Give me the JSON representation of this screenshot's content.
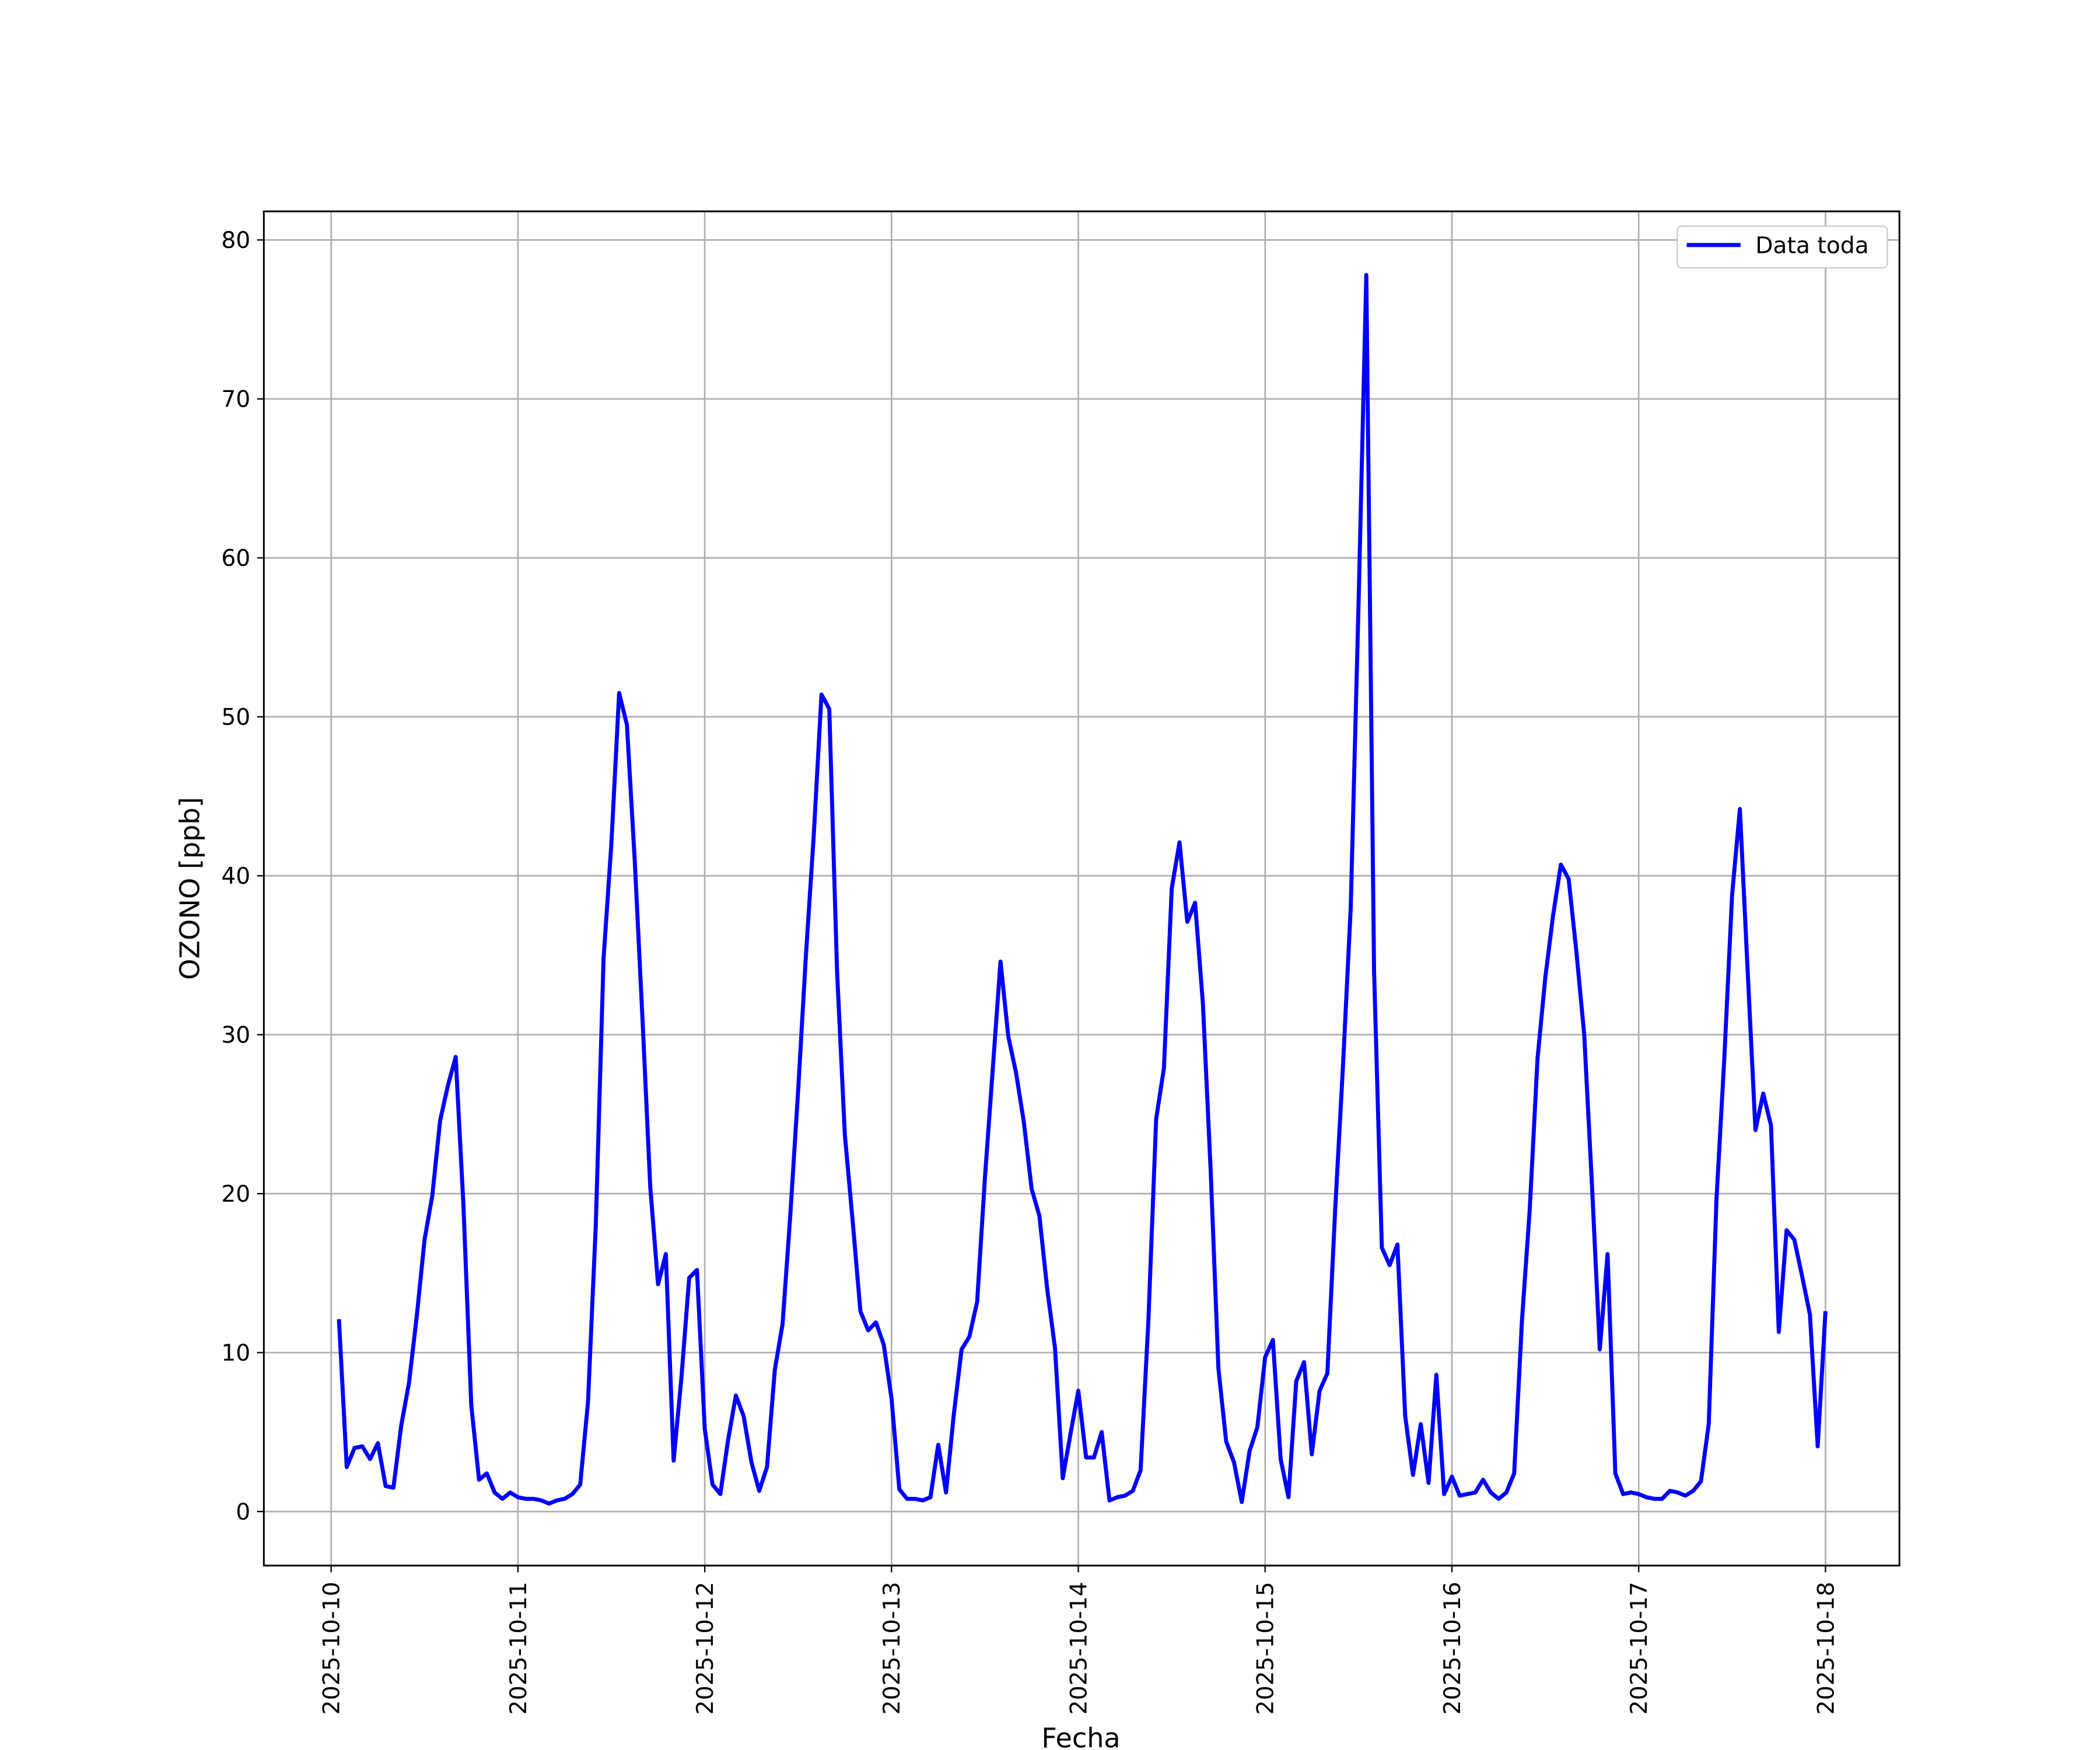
{
  "chart_data": {
    "type": "line",
    "xlabel": "Fecha",
    "ylabel": "OZONO [ppb]",
    "x": [
      "2025-10-10 01:00",
      "2025-10-10 02:00",
      "2025-10-10 03:00",
      "2025-10-10 04:00",
      "2025-10-10 05:00",
      "2025-10-10 06:00",
      "2025-10-10 07:00",
      "2025-10-10 08:00",
      "2025-10-10 09:00",
      "2025-10-10 10:00",
      "2025-10-10 11:00",
      "2025-10-10 12:00",
      "2025-10-10 13:00",
      "2025-10-10 14:00",
      "2025-10-10 15:00",
      "2025-10-10 16:00",
      "2025-10-10 17:00",
      "2025-10-10 18:00",
      "2025-10-10 19:00",
      "2025-10-10 20:00",
      "2025-10-10 21:00",
      "2025-10-10 22:00",
      "2025-10-10 23:00",
      "2025-10-11 00:00",
      "2025-10-11 01:00",
      "2025-10-11 02:00",
      "2025-10-11 03:00",
      "2025-10-11 04:00",
      "2025-10-11 05:00",
      "2025-10-11 06:00",
      "2025-10-11 07:00",
      "2025-10-11 08:00",
      "2025-10-11 09:00",
      "2025-10-11 10:00",
      "2025-10-11 11:00",
      "2025-10-11 12:00",
      "2025-10-11 13:00",
      "2025-10-11 14:00",
      "2025-10-11 15:00",
      "2025-10-11 16:00",
      "2025-10-11 17:00",
      "2025-10-11 18:00",
      "2025-10-11 19:00",
      "2025-10-11 20:00",
      "2025-10-11 21:00",
      "2025-10-11 22:00",
      "2025-10-11 23:00",
      "2025-10-12 00:00",
      "2025-10-12 01:00",
      "2025-10-12 02:00",
      "2025-10-12 03:00",
      "2025-10-12 04:00",
      "2025-10-12 05:00",
      "2025-10-12 06:00",
      "2025-10-12 07:00",
      "2025-10-12 08:00",
      "2025-10-12 09:00",
      "2025-10-12 10:00",
      "2025-10-12 11:00",
      "2025-10-12 12:00",
      "2025-10-12 13:00",
      "2025-10-12 14:00",
      "2025-10-12 15:00",
      "2025-10-12 16:00",
      "2025-10-12 17:00",
      "2025-10-12 18:00",
      "2025-10-12 19:00",
      "2025-10-12 20:00",
      "2025-10-12 21:00",
      "2025-10-12 22:00",
      "2025-10-12 23:00",
      "2025-10-13 00:00",
      "2025-10-13 01:00",
      "2025-10-13 02:00",
      "2025-10-13 03:00",
      "2025-10-13 04:00",
      "2025-10-13 05:00",
      "2025-10-13 06:00",
      "2025-10-13 07:00",
      "2025-10-13 08:00",
      "2025-10-13 09:00",
      "2025-10-13 10:00",
      "2025-10-13 11:00",
      "2025-10-13 12:00",
      "2025-10-13 13:00",
      "2025-10-13 14:00",
      "2025-10-13 15:00",
      "2025-10-13 16:00",
      "2025-10-13 17:00",
      "2025-10-13 18:00",
      "2025-10-13 19:00",
      "2025-10-13 20:00",
      "2025-10-13 21:00",
      "2025-10-13 22:00",
      "2025-10-13 23:00",
      "2025-10-14 00:00",
      "2025-10-14 01:00",
      "2025-10-14 02:00",
      "2025-10-14 03:00",
      "2025-10-14 04:00",
      "2025-10-14 05:00",
      "2025-10-14 06:00",
      "2025-10-14 07:00",
      "2025-10-14 08:00",
      "2025-10-14 09:00",
      "2025-10-14 10:00",
      "2025-10-14 11:00",
      "2025-10-14 12:00",
      "2025-10-14 13:00",
      "2025-10-14 14:00",
      "2025-10-14 15:00",
      "2025-10-14 16:00",
      "2025-10-14 17:00",
      "2025-10-14 18:00",
      "2025-10-14 19:00",
      "2025-10-14 20:00",
      "2025-10-14 21:00",
      "2025-10-14 22:00",
      "2025-10-14 23:00",
      "2025-10-15 00:00",
      "2025-10-15 01:00",
      "2025-10-15 02:00",
      "2025-10-15 03:00",
      "2025-10-15 04:00",
      "2025-10-15 05:00",
      "2025-10-15 06:00",
      "2025-10-15 07:00",
      "2025-10-15 08:00",
      "2025-10-15 09:00",
      "2025-10-15 10:00",
      "2025-10-15 11:00",
      "2025-10-15 12:00",
      "2025-10-15 13:00",
      "2025-10-15 14:00",
      "2025-10-15 15:00",
      "2025-10-15 16:00",
      "2025-10-15 17:00",
      "2025-10-15 18:00",
      "2025-10-15 19:00",
      "2025-10-15 20:00",
      "2025-10-15 21:00",
      "2025-10-15 22:00",
      "2025-10-15 23:00",
      "2025-10-16 00:00",
      "2025-10-16 01:00",
      "2025-10-16 02:00",
      "2025-10-16 03:00",
      "2025-10-16 04:00",
      "2025-10-16 05:00",
      "2025-10-16 06:00",
      "2025-10-16 07:00",
      "2025-10-16 08:00",
      "2025-10-16 09:00",
      "2025-10-16 10:00",
      "2025-10-16 11:00",
      "2025-10-16 12:00",
      "2025-10-16 13:00",
      "2025-10-16 14:00",
      "2025-10-16 15:00",
      "2025-10-16 16:00",
      "2025-10-16 17:00",
      "2025-10-16 18:00",
      "2025-10-16 19:00",
      "2025-10-16 20:00",
      "2025-10-16 21:00",
      "2025-10-16 22:00",
      "2025-10-16 23:00",
      "2025-10-17 00:00",
      "2025-10-17 01:00",
      "2025-10-17 02:00",
      "2025-10-17 03:00",
      "2025-10-17 04:00",
      "2025-10-17 05:00",
      "2025-10-17 06:00",
      "2025-10-17 07:00",
      "2025-10-17 08:00",
      "2025-10-17 09:00",
      "2025-10-17 10:00",
      "2025-10-17 11:00",
      "2025-10-17 12:00",
      "2025-10-17 13:00",
      "2025-10-17 14:00",
      "2025-10-17 15:00",
      "2025-10-17 16:00",
      "2025-10-17 17:00",
      "2025-10-17 18:00",
      "2025-10-17 19:00",
      "2025-10-17 20:00",
      "2025-10-17 21:00",
      "2025-10-17 22:00",
      "2025-10-17 23:00",
      "2025-10-18 00:00"
    ],
    "series": [
      {
        "name": "Data toda",
        "color": "#0000ff",
        "values": [
          12.1,
          2.8,
          4.0,
          4.1,
          3.3,
          4.3,
          1.6,
          1.5,
          5.4,
          8.1,
          12.3,
          17.1,
          19.9,
          24.6,
          26.8,
          28.6,
          19.2,
          6.7,
          2.0,
          2.4,
          1.2,
          0.8,
          1.2,
          0.9,
          0.8,
          0.8,
          0.7,
          0.5,
          0.7,
          0.8,
          1.1,
          1.7,
          6.9,
          18.0,
          34.8,
          42.0,
          51.5,
          49.5,
          41.0,
          31.0,
          20.4,
          14.3,
          16.2,
          3.2,
          8.4,
          14.7,
          15.2,
          5.2,
          1.7,
          1.1,
          4.5,
          7.3,
          6.0,
          3.1,
          1.3,
          2.8,
          8.9,
          11.8,
          18.7,
          26.5,
          35.0,
          42.5,
          51.4,
          50.5,
          34.0,
          23.7,
          18.3,
          12.6,
          11.4,
          11.9,
          10.5,
          7.1,
          1.4,
          0.8,
          0.8,
          0.7,
          0.9,
          4.2,
          1.2,
          6.1,
          10.2,
          11.0,
          13.2,
          21.0,
          27.8,
          34.6,
          29.9,
          27.6,
          24.5,
          20.3,
          18.6,
          14.0,
          10.3,
          2.1,
          4.9,
          7.6,
          3.4,
          3.4,
          5.0,
          0.7,
          0.9,
          1.0,
          1.3,
          2.6,
          12.0,
          24.7,
          27.9,
          39.2,
          42.1,
          37.1,
          38.3,
          32.0,
          21.5,
          9.0,
          4.4,
          3.1,
          0.6,
          3.8,
          5.3,
          9.7,
          10.8,
          3.3,
          0.9,
          8.2,
          9.4,
          3.6,
          7.6,
          8.7,
          19.0,
          28.0,
          38.0,
          57.0,
          77.8,
          34.0,
          16.6,
          15.5,
          16.8,
          6.0,
          2.3,
          5.5,
          1.8,
          8.6,
          1.1,
          2.2,
          1.0,
          1.1,
          1.2,
          2.0,
          1.2,
          0.8,
          1.2,
          2.4,
          12.0,
          19.0,
          28.5,
          33.6,
          37.5,
          40.7,
          39.8,
          35.2,
          30.0,
          20.5,
          10.2,
          16.2,
          2.4,
          1.1,
          1.2,
          1.1,
          0.9,
          0.8,
          0.8,
          1.3,
          1.2,
          1.0,
          1.3,
          1.9,
          5.5,
          19.7,
          28.5,
          38.8,
          44.2,
          34.0,
          24.0,
          26.3,
          24.3,
          11.3,
          17.7,
          17.1,
          14.8,
          12.4,
          4.1,
          12.6
        ]
      }
    ],
    "xlim": [
      "2025-10-09 15:21",
      "2025-10-18 09:30"
    ],
    "xticks": [
      "2025-10-10",
      "2025-10-11",
      "2025-10-12",
      "2025-10-13",
      "2025-10-14",
      "2025-10-15",
      "2025-10-16",
      "2025-10-17",
      "2025-10-18"
    ],
    "ylim": [
      -3.4,
      81.8
    ],
    "yticks": [
      0,
      10,
      20,
      30,
      40,
      50,
      60,
      70,
      80
    ],
    "grid": true,
    "legend": "upper right"
  }
}
